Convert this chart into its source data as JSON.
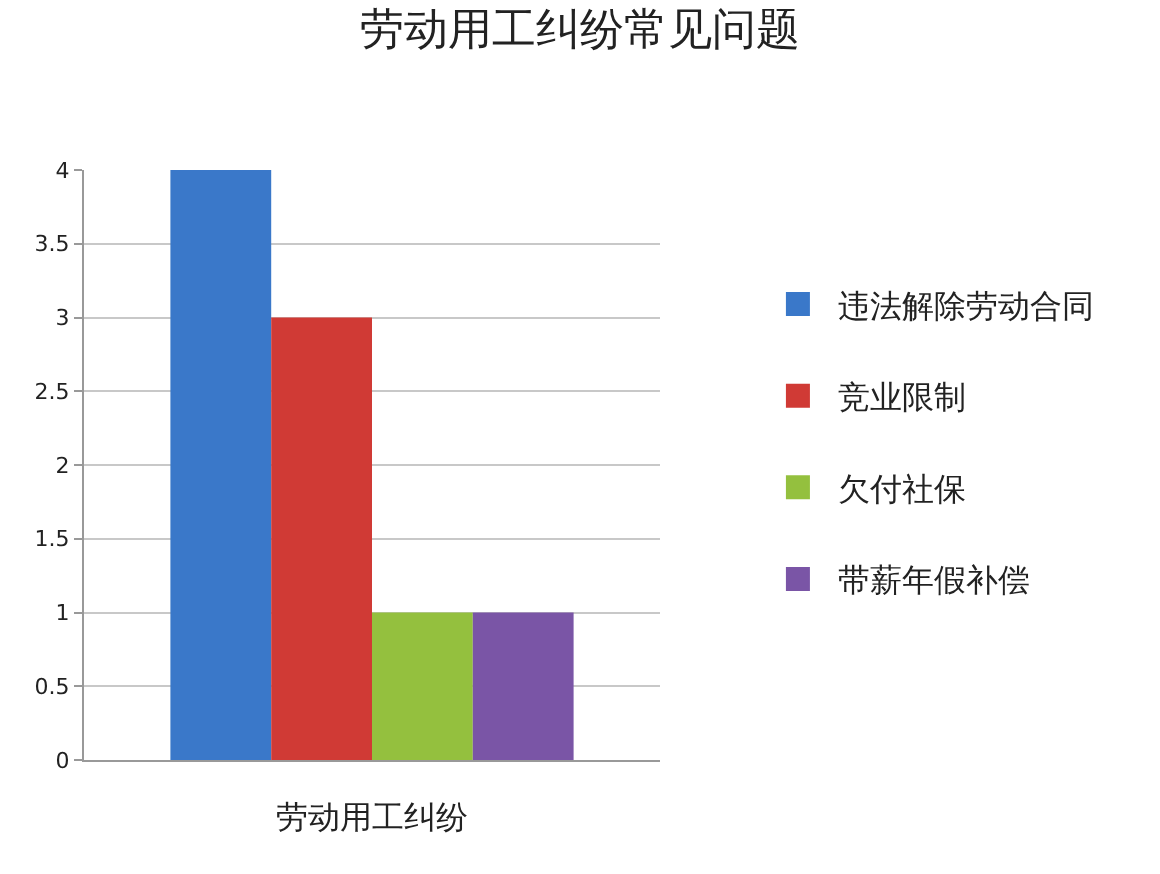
{
  "chart_data": {
    "type": "bar",
    "title": "劳动用工纠纷常见问题",
    "categories": [
      "劳动用工纠纷"
    ],
    "series": [
      {
        "name": "违法解除劳动合同",
        "color": "#3a78c9",
        "values": [
          4
        ]
      },
      {
        "name": "竞业限制",
        "color": "#d03a35",
        "values": [
          3
        ]
      },
      {
        "name": "欠付社保",
        "color": "#94c03e",
        "values": [
          1
        ]
      },
      {
        "name": "带薪年假补偿",
        "color": "#7a55a6",
        "values": [
          1
        ]
      }
    ],
    "ylim": [
      0,
      4
    ],
    "yticks": [
      0,
      0.5,
      1,
      1.5,
      2,
      2.5,
      3,
      3.5,
      4
    ],
    "grid": "y",
    "legend": "right"
  }
}
